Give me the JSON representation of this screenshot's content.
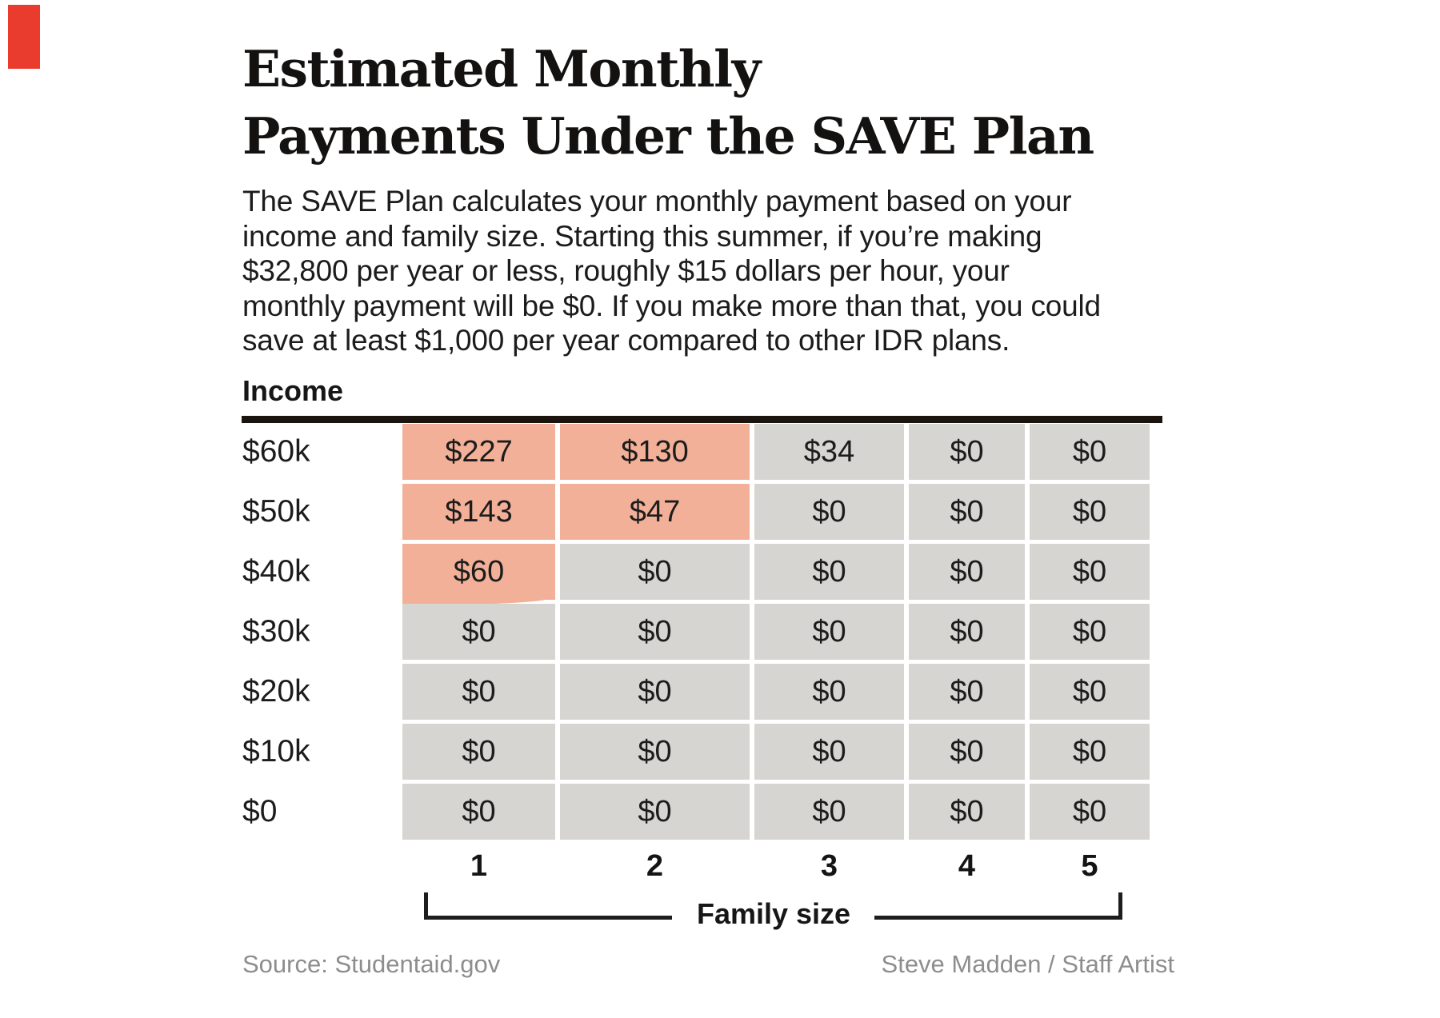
{
  "colors": {
    "highlight": "#f2b098",
    "cell": "#d6d5d1",
    "rule": "#1b140e",
    "muted": "#8d8d8d",
    "corner_mark": "#e93c2f"
  },
  "header": {
    "title_line1": "Estimated Monthly",
    "title_line2": "Payments Under the SAVE Plan",
    "description": "The SAVE Plan calculates your monthly payment based on your income and family size. Starting this summer, if you’re making $32,800 per year or less, roughly $15 dollars per hour, your monthly payment will be $0. If you make more than that, you could save at least $1,000 per year compared to other IDR plans."
  },
  "chart_data": {
    "type": "table",
    "title": "Estimated Monthly Payments Under the SAVE Plan",
    "row_axis_label": "Income",
    "col_axis_label": "Family size",
    "row_labels": [
      "$60k",
      "$50k",
      "$40k",
      "$30k",
      "$20k",
      "$10k",
      "$0"
    ],
    "col_labels": [
      "1",
      "2",
      "3",
      "4",
      "5"
    ],
    "values": [
      [
        "$227",
        "$130",
        "$34",
        "$0",
        "$0"
      ],
      [
        "$143",
        "$47",
        "$0",
        "$0",
        "$0"
      ],
      [
        "$60",
        "$0",
        "$0",
        "$0",
        "$0"
      ],
      [
        "$0",
        "$0",
        "$0",
        "$0",
        "$0"
      ],
      [
        "$0",
        "$0",
        "$0",
        "$0",
        "$0"
      ],
      [
        "$0",
        "$0",
        "$0",
        "$0",
        "$0"
      ],
      [
        "$0",
        "$0",
        "$0",
        "$0",
        "$0"
      ]
    ],
    "highlighted_cells": [
      [
        0,
        0
      ],
      [
        0,
        1
      ],
      [
        1,
        0
      ],
      [
        1,
        1
      ],
      [
        2,
        0
      ]
    ],
    "hand_drawn_edge_cell": [
      2,
      0
    ],
    "highlight_color": "#f2b098",
    "cell_color": "#d6d5d1"
  },
  "footer": {
    "source": "Source: Studentaid.gov",
    "credit": "Steve Madden / Staff Artist"
  }
}
